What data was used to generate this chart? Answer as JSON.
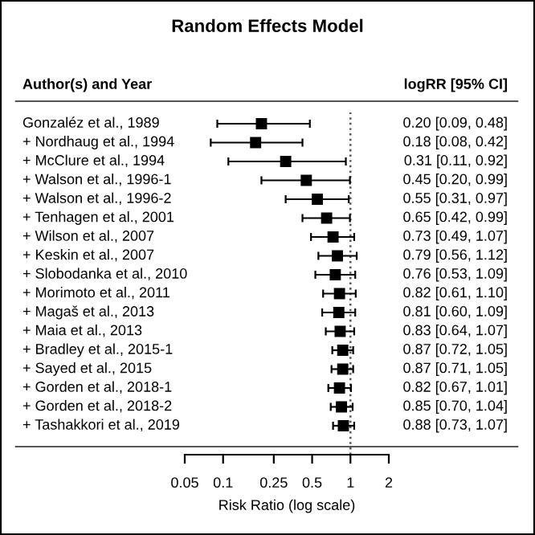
{
  "chart_data": {
    "type": "scatter",
    "orientation": "horizontal",
    "title": "Random Effects Model",
    "ylabel": "Author(s) and Year",
    "xlabel": "Risk Ratio (log scale)",
    "annotations": [
      "logRR [95% CI]"
    ],
    "categories": [
      "Gonzaléz et al., 1989",
      "+ Nordhaug et al., 1994",
      "+ McClure et al., 1994",
      "+ Walson et al., 1996-1",
      "+ Walson et al., 1996-2",
      "+ Tenhagen et al., 2001",
      "+ Wilson et al., 2007",
      "+ Keskin et al., 2007",
      "+ Slobodanka et al., 2010",
      "+ Morimoto et al., 2011",
      "+ Magaš et al., 2013",
      "+ Maia et al., 2013",
      "+ Bradley et al., 2015-1",
      "+ Sayed et al., 2015",
      "+ Gorden et al., 2018-1",
      "+ Gorden et al., 2018-2",
      "+ Tashakkori et al., 2019"
    ],
    "values": [
      0.2,
      0.18,
      0.31,
      0.45,
      0.55,
      0.65,
      0.73,
      0.79,
      0.76,
      0.82,
      0.81,
      0.83,
      0.87,
      0.87,
      0.82,
      0.85,
      0.88
    ],
    "errors": [
      [
        0.09,
        0.48
      ],
      [
        0.08,
        0.42
      ],
      [
        0.11,
        0.92
      ],
      [
        0.2,
        0.99
      ],
      [
        0.31,
        0.97
      ],
      [
        0.42,
        0.99
      ],
      [
        0.49,
        1.07
      ],
      [
        0.56,
        1.12
      ],
      [
        0.53,
        1.09
      ],
      [
        0.61,
        1.1
      ],
      [
        0.6,
        1.09
      ],
      [
        0.64,
        1.07
      ],
      [
        0.72,
        1.05
      ],
      [
        0.71,
        1.05
      ],
      [
        0.67,
        1.01
      ],
      [
        0.7,
        1.04
      ],
      [
        0.73,
        1.07
      ]
    ],
    "value_labels": [
      "0.20 [0.09, 0.48]",
      "0.18 [0.08, 0.42]",
      "0.31 [0.11, 0.92]",
      "0.45 [0.20, 0.99]",
      "0.55 [0.31, 0.97]",
      "0.65 [0.42, 0.99]",
      "0.73 [0.49, 1.07]",
      "0.79 [0.56, 1.12]",
      "0.76 [0.53, 1.09]",
      "0.82 [0.61, 1.10]",
      "0.81 [0.60, 1.09]",
      "0.83 [0.64, 1.07]",
      "0.87 [0.72, 1.05]",
      "0.87 [0.71, 1.05]",
      "0.82 [0.67, 1.01]",
      "0.85 [0.70, 1.04]",
      "0.88 [0.73, 1.07]"
    ],
    "color": "#000000",
    "marker": "square",
    "log": "x",
    "xlim": [
      0.05,
      2
    ],
    "xticks": [
      0.05,
      0.1,
      0.25,
      0.5,
      1,
      2
    ],
    "ref_lines": [
      {
        "axis": "x",
        "value": 1,
        "line_style": "dotted",
        "color": "#555555"
      }
    ],
    "grid": false,
    "legend": false
  }
}
